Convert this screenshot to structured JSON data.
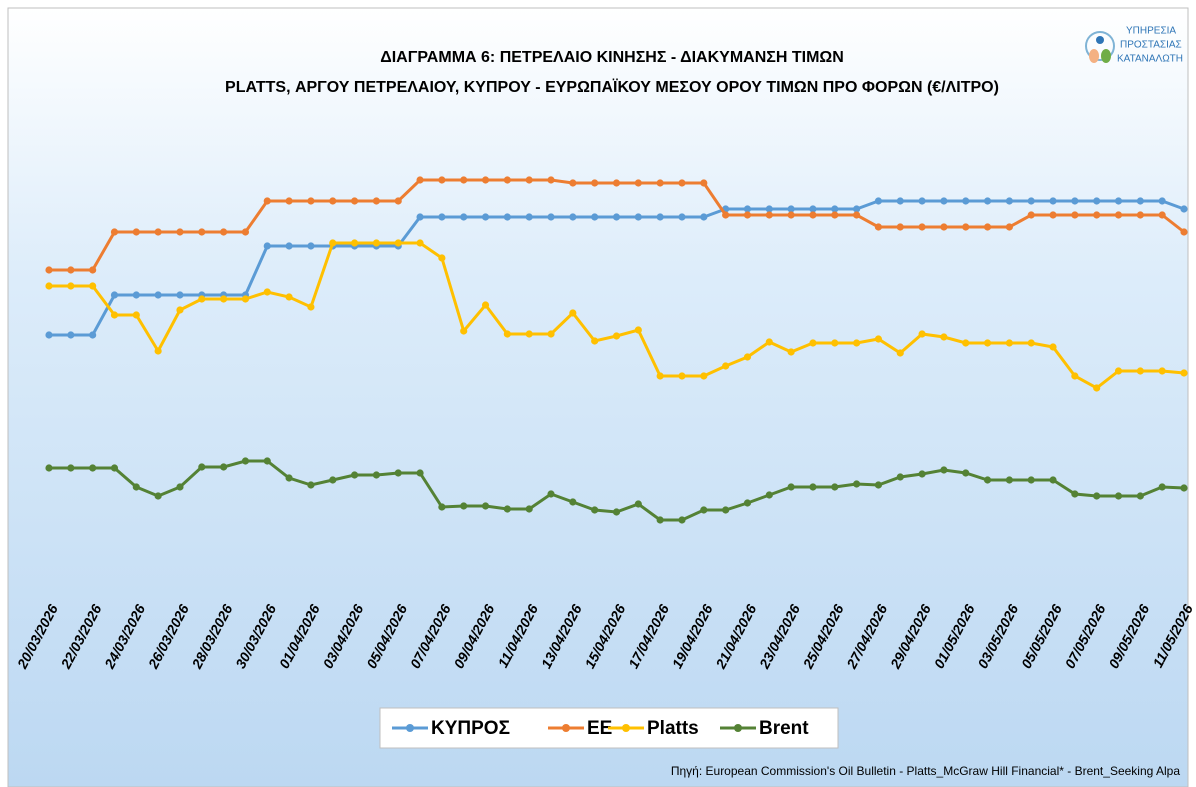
{
  "chart_data": {
    "type": "line",
    "title": "ΔΙΑΓΡΑΜΜΑ 6: ΠΕΤΡΕΛΑΙΟ ΚΙΝΗΣΗΣ - ΔΙΑΚΥΜΑΝΣΗ ΤΙΜΩΝ",
    "subtitle": "PLATTS, ΑΡΓΟΥ ΠΕΤΡΕΛΑΙΟΥ, ΚΥΠΡΟΥ - ΕΥΡΩΠΑΪΚΟΥ ΜΕΣΟΥ ΟΡΟΥ ΤΙΜΩΝ ΠΡΟ ΦΟΡΩΝ (€/ΛΙΤΡΟ)",
    "source": "Πηγή: European Commission's Oil Bulletin - Platts_McGraw Hill Financial* - Brent_Seeking Alpa",
    "logo": [
      "ΥΠΗΡΕΣΙΑ",
      "ΠΡΟΣΤΑΣΙΑΣ",
      "ΚΑΤΑΝΑΛΩΤΗ"
    ],
    "categories": [
      "20/03/2026",
      null,
      "22/03/2026",
      null,
      "24/03/2026",
      null,
      "26/03/2026",
      null,
      "28/03/2026",
      null,
      "30/03/2026",
      null,
      "01/04/2026",
      null,
      "03/04/2026",
      null,
      "05/04/2026",
      null,
      "07/04/2026",
      null,
      "09/04/2026",
      null,
      "11/04/2026",
      null,
      "13/04/2026",
      null,
      "15/04/2026",
      null,
      "17/04/2026",
      null,
      "19/04/2026",
      null,
      "21/04/2026",
      null,
      "23/04/2026",
      null,
      "25/04/2026",
      null,
      "27/04/2026",
      null,
      "29/04/2026",
      null,
      "01/05/2026",
      null,
      "03/05/2026",
      null,
      "05/05/2026",
      null,
      "07/05/2026",
      null,
      "09/05/2026",
      null,
      "11/05/2026"
    ],
    "ylim": [
      0,
      500
    ],
    "legend": "bottom",
    "series": [
      {
        "name": "ΚΥΠΡΟΣ",
        "color": "#5b9bd5",
        "values": [
          285,
          285,
          285,
          325,
          325,
          325,
          325,
          325,
          325,
          325,
          374,
          374,
          374,
          374,
          374,
          374,
          374,
          403,
          403,
          403,
          403,
          403,
          403,
          403,
          403,
          403,
          403,
          403,
          403,
          403,
          403,
          411,
          411,
          411,
          411,
          411,
          411,
          411,
          419,
          419,
          419,
          419,
          419,
          419,
          419,
          419,
          419,
          419,
          419,
          419,
          419,
          419,
          411
        ]
      },
      {
        "name": "ΕΕ",
        "color": "#ed7d31",
        "values": [
          350,
          350,
          350,
          388,
          388,
          388,
          388,
          388,
          388,
          388,
          419,
          419,
          419,
          419,
          419,
          419,
          419,
          440,
          440,
          440,
          440,
          440,
          440,
          440,
          437,
          437,
          437,
          437,
          437,
          437,
          437,
          405,
          405,
          405,
          405,
          405,
          405,
          405,
          393,
          393,
          393,
          393,
          393,
          393,
          393,
          405,
          405,
          405,
          405,
          405,
          405,
          405,
          388
        ]
      },
      {
        "name": "Platts",
        "color": "#ffc000",
        "values": [
          334,
          334,
          334,
          305,
          305,
          269,
          310,
          321,
          321,
          321,
          328,
          323,
          313,
          377,
          377,
          377,
          377,
          377,
          362,
          289,
          315,
          286,
          286,
          286,
          307,
          279,
          284,
          290,
          244,
          244,
          244,
          254,
          263,
          278,
          268,
          277,
          277,
          277,
          281,
          267,
          286,
          283,
          277,
          277,
          277,
          277,
          273,
          244,
          232,
          249,
          249,
          249,
          247
        ]
      },
      {
        "name": "Brent",
        "color": "#548235",
        "values": [
          152,
          152,
          152,
          152,
          133,
          124,
          133,
          153,
          153,
          159,
          159,
          142,
          135,
          140,
          145,
          145,
          147,
          147,
          113,
          114,
          114,
          111,
          111,
          126,
          118,
          110,
          108,
          116,
          100,
          100,
          110,
          110,
          117,
          125,
          133,
          133,
          133,
          136,
          135,
          143,
          146,
          150,
          147,
          140,
          140,
          140,
          140,
          126,
          124,
          124,
          124,
          133,
          132
        ]
      }
    ]
  }
}
